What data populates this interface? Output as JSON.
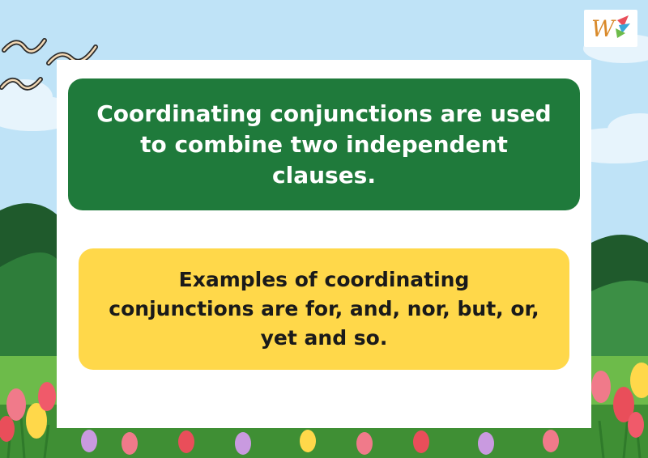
{
  "cards": {
    "definition": "Coordinating conjunctions are used to combine two independent clauses.",
    "examples": "Examples of coordinating conjunctions are for, and, nor, but, or, yet and so."
  },
  "logo": {
    "letter": "W"
  },
  "colors": {
    "sky": "#bfe3f7",
    "green_card": "#1f7a3b",
    "yellow_card": "#ffd84a",
    "panel": "#ffffff"
  }
}
